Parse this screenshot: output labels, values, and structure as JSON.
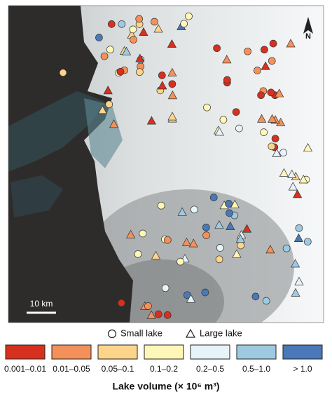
{
  "map": {
    "north_label": "N",
    "scale_label": "10 km",
    "marker_legend": [
      "Small lake",
      "Large lake"
    ],
    "color_legend": [
      {
        "label": "0.001–0.01",
        "color": "#d7301f"
      },
      {
        "label": "0.01–0.05",
        "color": "#f4915a"
      },
      {
        "label": "0.05–0.1",
        "color": "#fdd58a"
      },
      {
        "label": "0.1–0.2",
        "color": "#fff7b8"
      },
      {
        "label": "0.2–0.5",
        "color": "#e6f3f8"
      },
      {
        "label": "0.5–1.0",
        "color": "#9ecae1"
      },
      {
        "label": "> 1.0",
        "color": "#4a78b8"
      }
    ],
    "legend_title": "Lake volume (× 10⁶ m³)"
  }
}
